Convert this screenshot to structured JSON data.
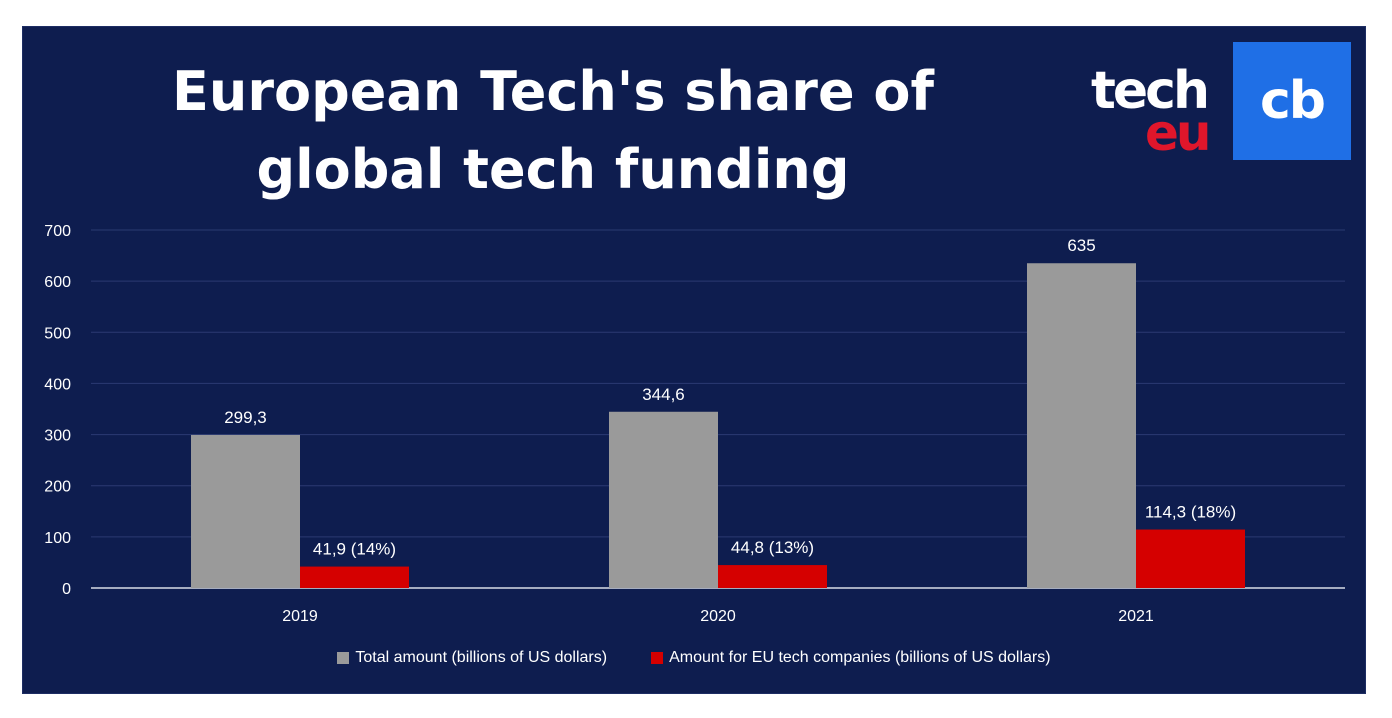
{
  "logos": {
    "techeu": {
      "tech": "tech",
      "eu": "eu"
    },
    "cb": "cb"
  },
  "chart_data": {
    "type": "bar",
    "title": "European Tech's share of global tech funding",
    "categories": [
      "2019",
      "2020",
      "2021"
    ],
    "series": [
      {
        "name": "Total amount (billions of US dollars)",
        "color": "#9a9a9a",
        "values": [
          299.3,
          344.6,
          635
        ],
        "labels": [
          "299,3",
          "344,6",
          "635"
        ]
      },
      {
        "name": "Amount for EU tech companies (billions of US dollars)",
        "color": "#d50000",
        "values": [
          41.9,
          44.8,
          114.3
        ],
        "labels": [
          "41,9 (14%)",
          "44,8 (13%)",
          "114,3 (18%)"
        ]
      }
    ],
    "ylim": [
      0,
      700
    ],
    "yticks": [
      0,
      100,
      200,
      300,
      400,
      500,
      600,
      700
    ],
    "grid": true,
    "legend": "bottom"
  }
}
